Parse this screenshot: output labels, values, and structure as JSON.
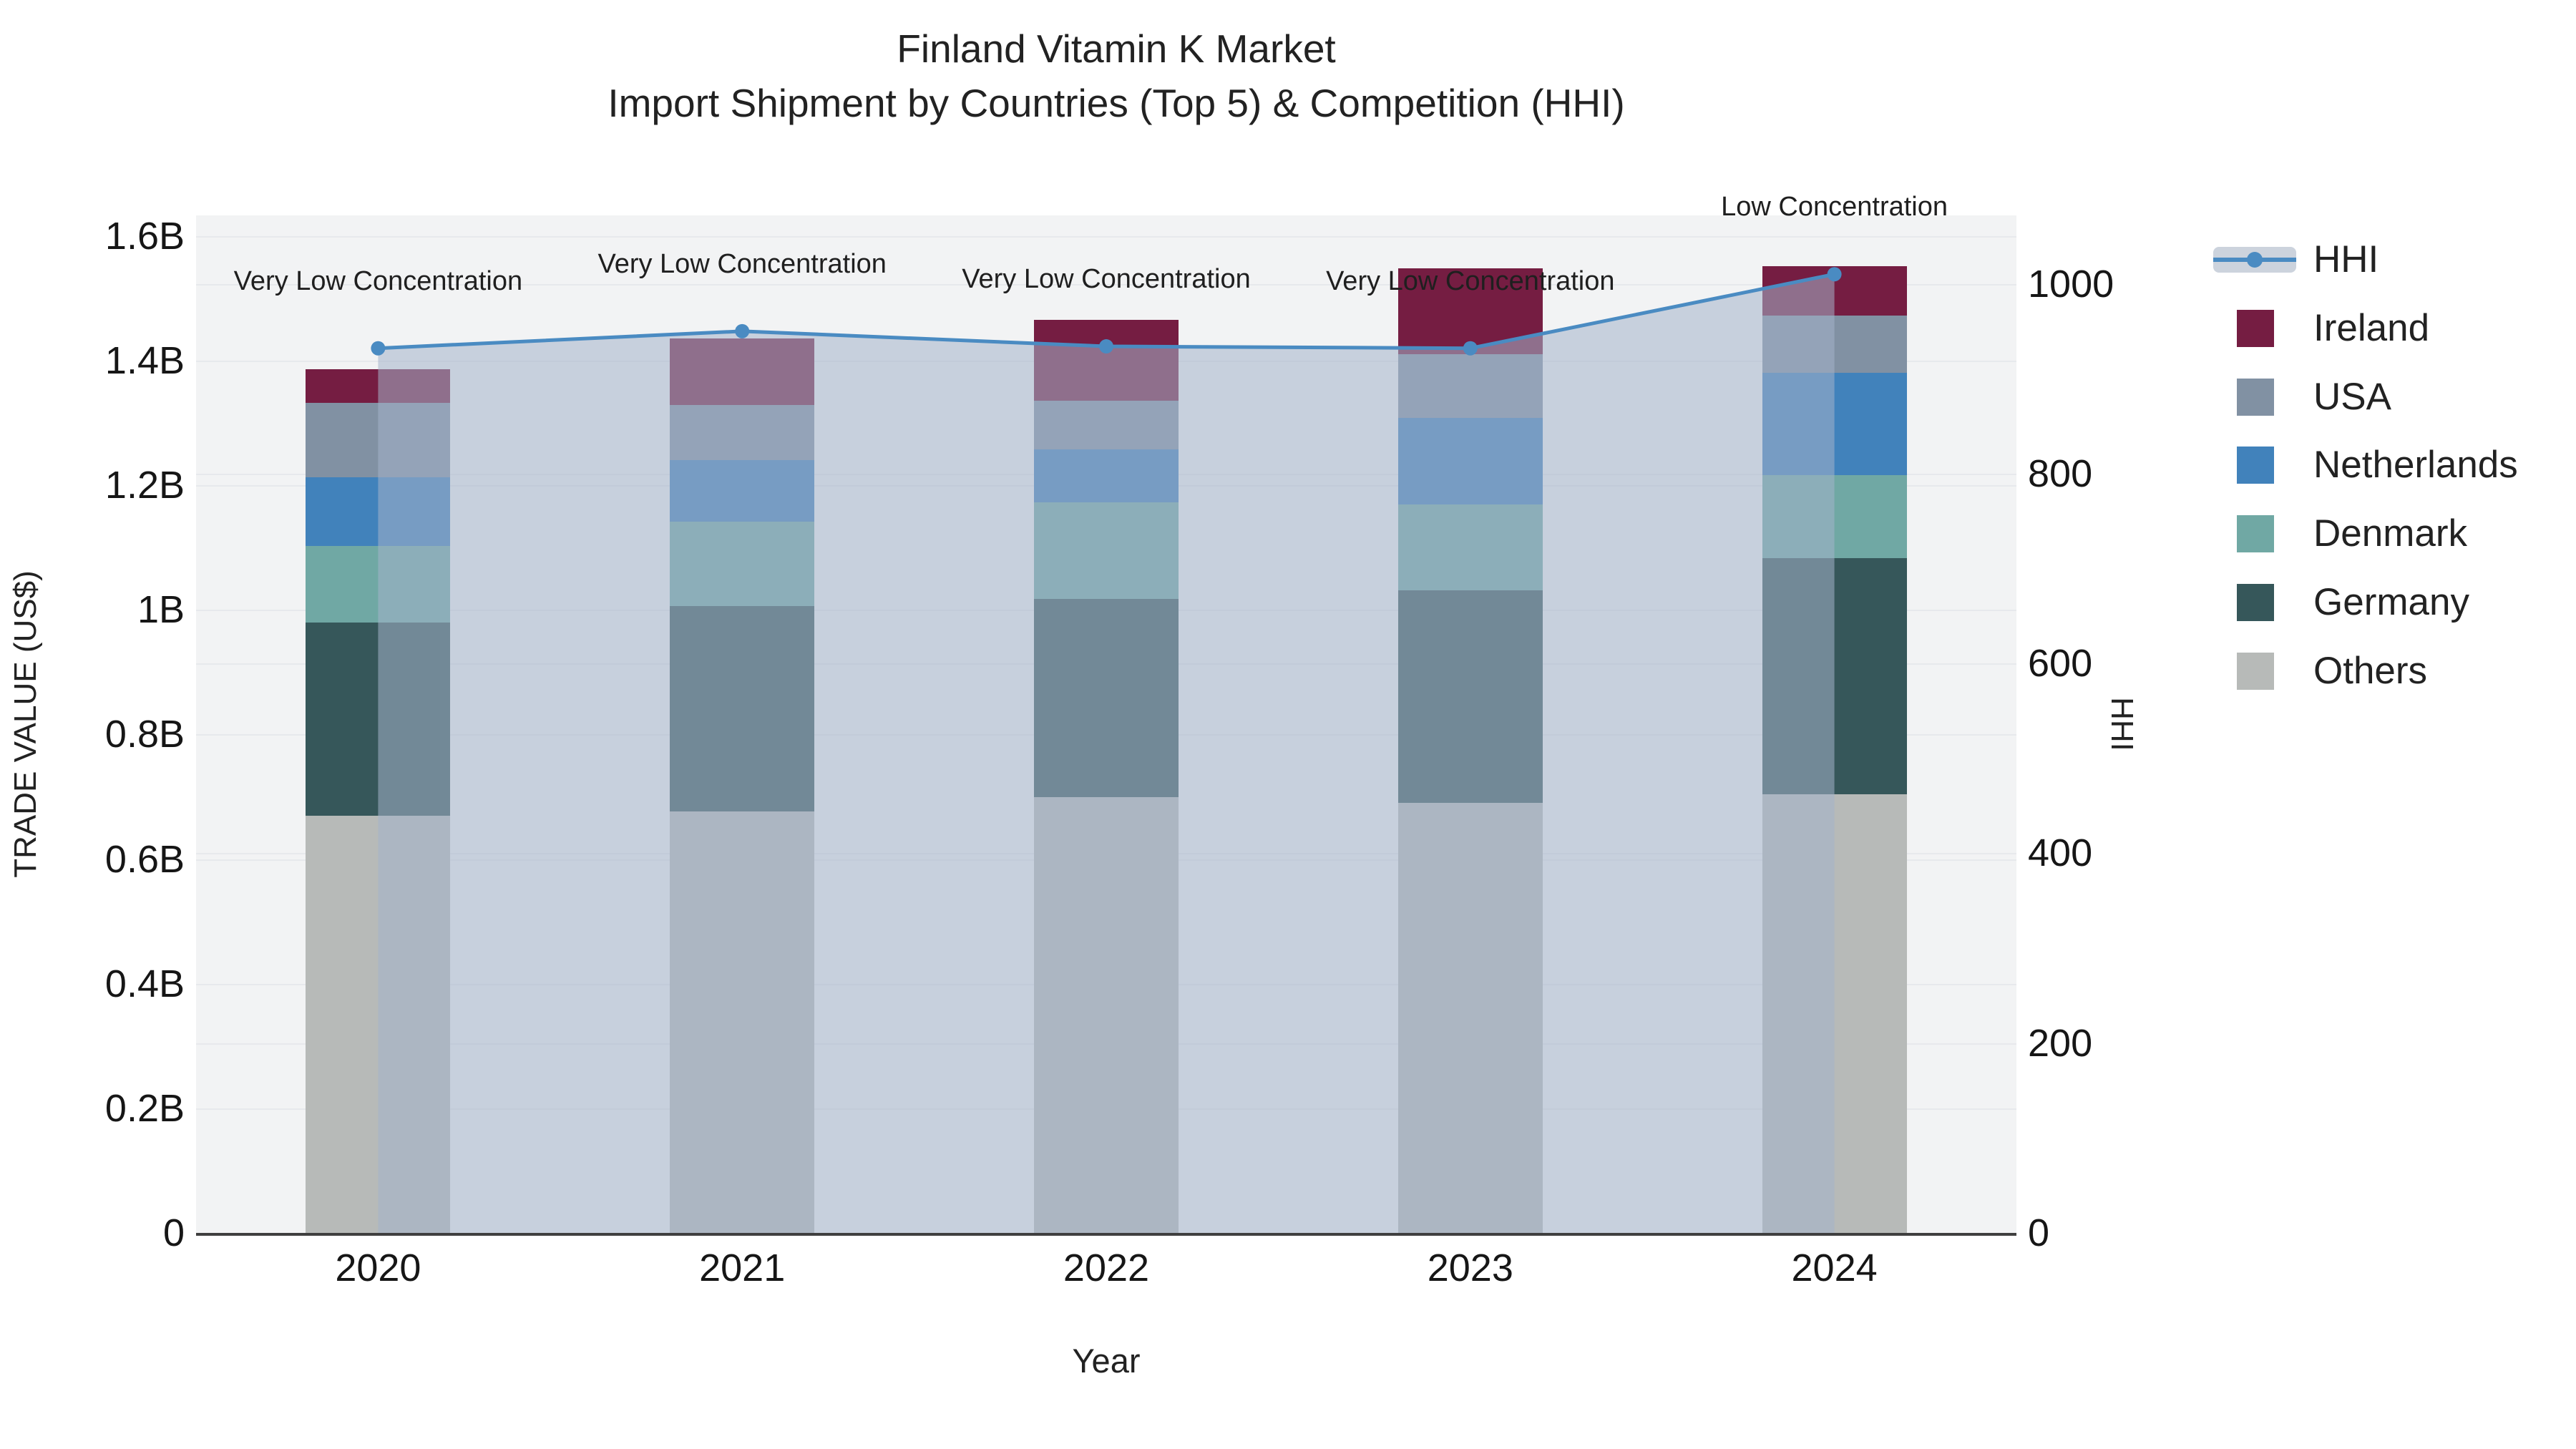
{
  "title": {
    "line1": "Finland Vitamin K Market",
    "line2": "Import Shipment by Countries (Top 5) & Competition (HHI)"
  },
  "axes": {
    "left": {
      "title": "TRADE VALUE (US$)",
      "ticks": [
        {
          "label": "0",
          "value": 0
        },
        {
          "label": "0.2B",
          "value": 0.2
        },
        {
          "label": "0.4B",
          "value": 0.4
        },
        {
          "label": "0.6B",
          "value": 0.6
        },
        {
          "label": "0.8B",
          "value": 0.8
        },
        {
          "label": "1B",
          "value": 1.0
        },
        {
          "label": "1.2B",
          "value": 1.2
        },
        {
          "label": "1.4B",
          "value": 1.4
        },
        {
          "label": "1.6B",
          "value": 1.6
        }
      ]
    },
    "right": {
      "title": "HHI",
      "ticks": [
        {
          "label": "0",
          "value": 0
        },
        {
          "label": "200",
          "value": 200
        },
        {
          "label": "400",
          "value": 400
        },
        {
          "label": "600",
          "value": 600
        },
        {
          "label": "800",
          "value": 800
        },
        {
          "label": "1000",
          "value": 1000
        }
      ]
    },
    "x": {
      "title": "Year",
      "categories": [
        "2020",
        "2021",
        "2022",
        "2023",
        "2024"
      ]
    }
  },
  "legend": {
    "items": [
      {
        "label": "HHI",
        "type": "line",
        "color": "#4a8bc2"
      },
      {
        "label": "Ireland",
        "type": "square",
        "color": "#751d42"
      },
      {
        "label": "USA",
        "type": "square",
        "color": "#8191a3"
      },
      {
        "label": "Netherlands",
        "type": "square",
        "color": "#4182bb"
      },
      {
        "label": "Denmark",
        "type": "square",
        "color": "#70a8a4"
      },
      {
        "label": "Germany",
        "type": "square",
        "color": "#36575a"
      },
      {
        "label": "Others",
        "type": "square",
        "color": "#b7bab8"
      }
    ]
  },
  "colors": {
    "plot_bg": "#f2f3f4",
    "gridline": "#e7e9ec",
    "axis_line": "#3f3f3f",
    "hhi_line": "#4a8bc2",
    "hhi_fill": "rgba(164,178,203,0.55)",
    "annotation_text": "#1f1f1f"
  },
  "chart_data": {
    "type": "bar",
    "subtype": "stacked-with-line-overlay",
    "title": "Finland Vitamin K Market — Import Shipment by Countries (Top 5) & Competition (HHI)",
    "xlabel": "Year",
    "ylabel": "TRADE VALUE (US$)",
    "y2label": "HHI",
    "categories": [
      "2020",
      "2021",
      "2022",
      "2023",
      "2024"
    ],
    "unit": "billion US$",
    "stack_order_bottom_to_top": [
      "Others",
      "Germany",
      "Denmark",
      "Netherlands",
      "USA",
      "Ireland"
    ],
    "series": [
      {
        "name": "Ireland",
        "color": "#751d42",
        "values": [
          0.054,
          0.107,
          0.129,
          0.138,
          0.079
        ]
      },
      {
        "name": "USA",
        "color": "#8191a3",
        "values": [
          0.119,
          0.089,
          0.079,
          0.102,
          0.092
        ]
      },
      {
        "name": "Netherlands",
        "color": "#4182bb",
        "values": [
          0.11,
          0.098,
          0.084,
          0.139,
          0.164
        ]
      },
      {
        "name": "Denmark",
        "color": "#70a8a4",
        "values": [
          0.124,
          0.136,
          0.156,
          0.138,
          0.133
        ]
      },
      {
        "name": "Germany",
        "color": "#36575a",
        "values": [
          0.31,
          0.33,
          0.318,
          0.341,
          0.379
        ]
      },
      {
        "name": "Others",
        "color": "#b7bab8",
        "values": [
          0.669,
          0.676,
          0.699,
          0.69,
          0.704
        ]
      }
    ],
    "totals_billion": [
      1.386,
      1.436,
      1.465,
      1.548,
      1.551
    ],
    "line": {
      "name": "HHI",
      "axis": "right",
      "color": "#4a8bc2",
      "values": [
        932,
        950,
        934,
        932,
        1010
      ],
      "fill_to_zero": true,
      "fill_color": "rgba(164,178,203,0.55)"
    },
    "annotations": [
      {
        "category": "2020",
        "text": "Very Low Concentration"
      },
      {
        "category": "2021",
        "text": "Very Low Concentration"
      },
      {
        "category": "2022",
        "text": "Very Low Concentration"
      },
      {
        "category": "2023",
        "text": "Very Low Concentration"
      },
      {
        "category": "2024",
        "text": "Low Concentration"
      }
    ],
    "ylim": [
      0,
      1.633
    ],
    "y2lim": [
      0,
      1072
    ],
    "grid": true,
    "legend_position": "right"
  }
}
